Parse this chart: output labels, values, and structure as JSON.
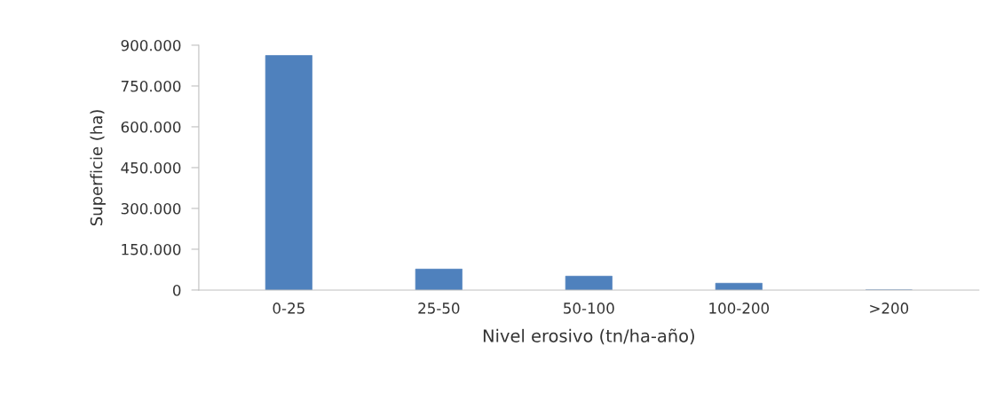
{
  "chart_data": {
    "type": "bar",
    "xlabel": "Nivel erosivo (tn/ha-año)",
    "ylabel": "Superficie (ha)",
    "categories": [
      "0-25",
      "25-50",
      "50-100",
      "100-200",
      ">200"
    ],
    "values": [
      862000,
      77000,
      51000,
      25000,
      0
    ],
    "color": "#4f81bd",
    "ylim": [
      0,
      900000
    ],
    "yticks": [
      0,
      {
        "value": 150000,
        "label": "150.000"
      },
      {
        "value": 300000,
        "label": "300.000"
      },
      {
        "value": 450000,
        "label": "450.000"
      },
      {
        "value": 600000,
        "label": "600.000"
      },
      {
        "value": 750000,
        "label": "750.000"
      },
      {
        "value": 900000,
        "label": "900.000"
      }
    ],
    "grid": false,
    "legend": false
  }
}
